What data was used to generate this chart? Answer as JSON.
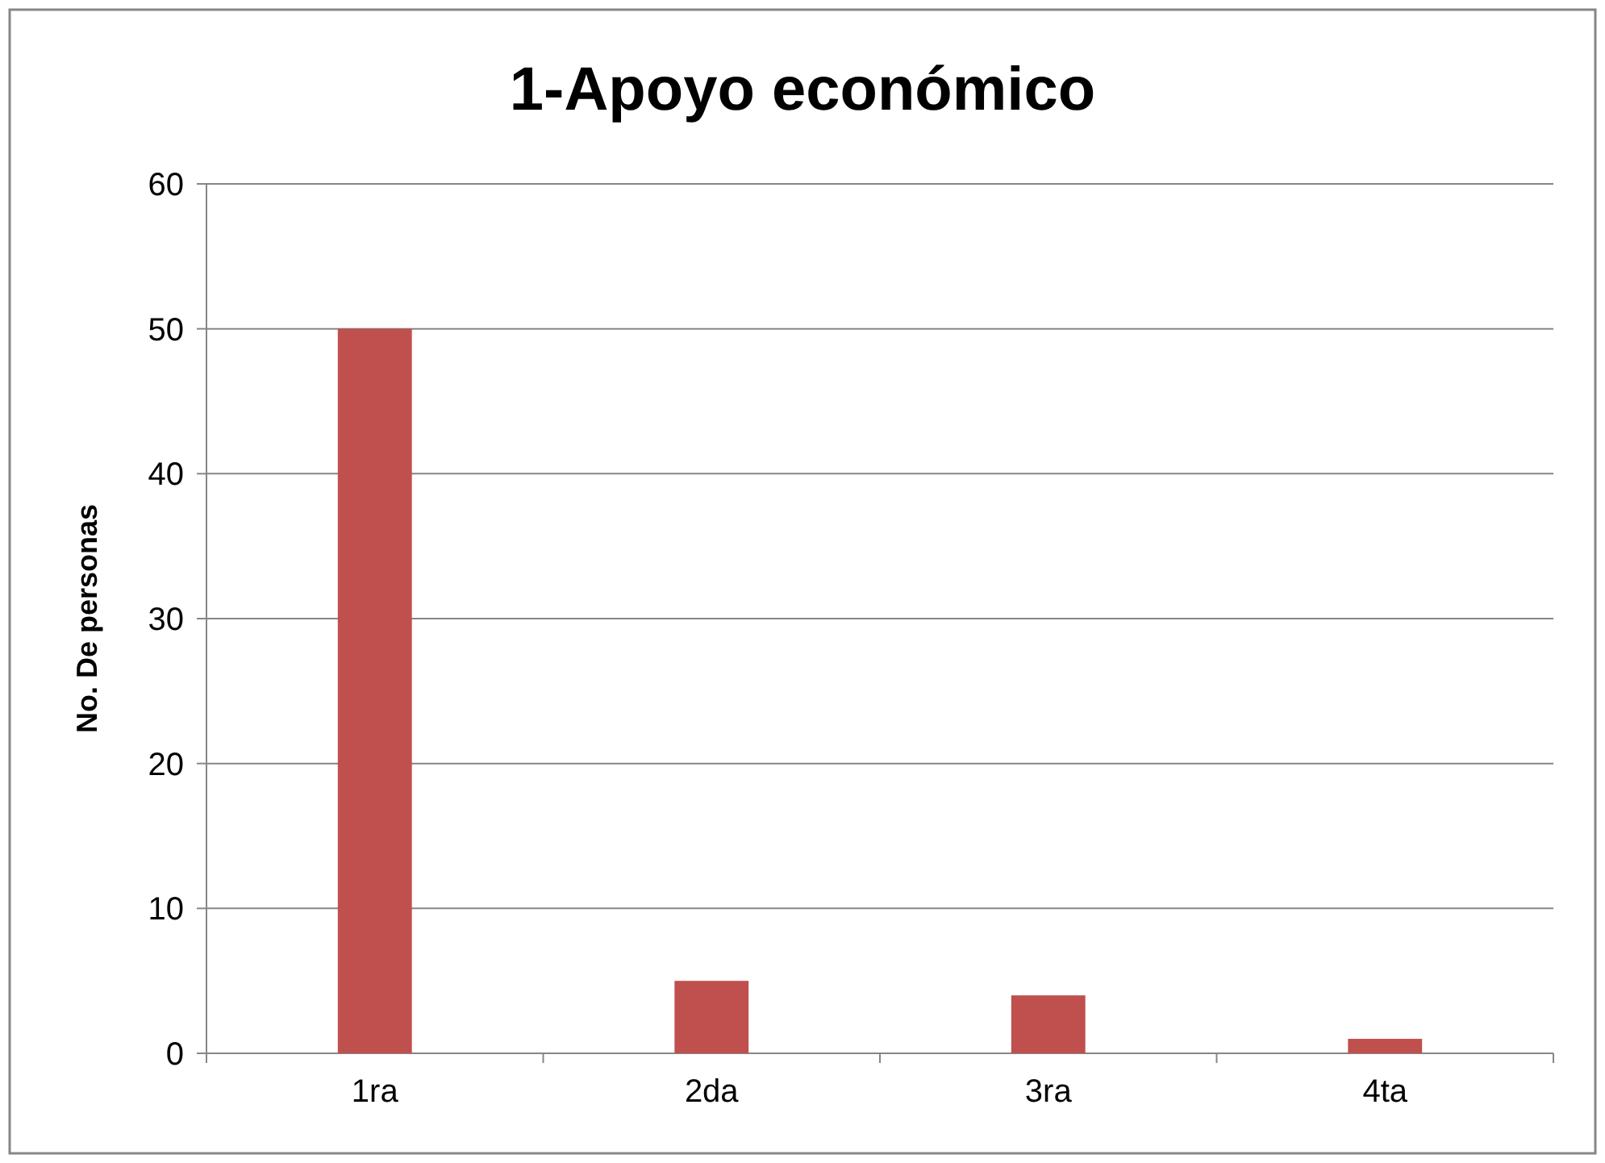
{
  "chart_data": {
    "type": "bar",
    "title": "1-Apoyo económico",
    "ylabel": "No. De personas",
    "categories": [
      "1ra",
      "2da",
      "3ra",
      "4ta"
    ],
    "values": [
      50,
      5,
      4,
      1
    ],
    "color": "#c0504d",
    "ylim": [
      0,
      60
    ],
    "yticks": [
      0,
      10,
      20,
      30,
      40,
      50,
      60
    ],
    "grid": "y"
  }
}
